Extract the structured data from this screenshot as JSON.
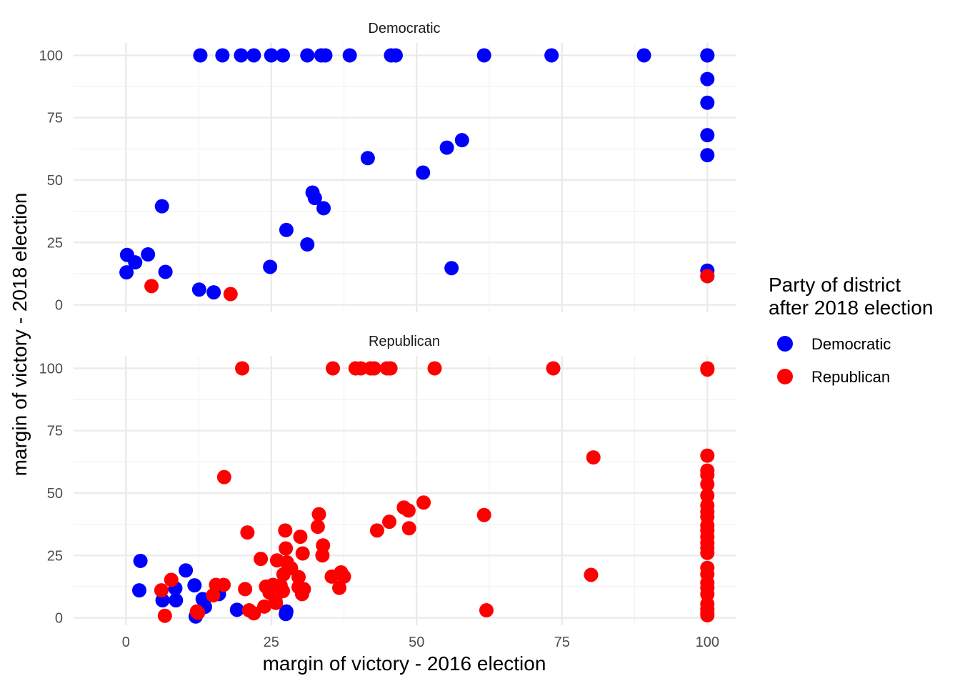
{
  "chart_data": {
    "type": "scatter",
    "xlabel": "margin of victory - 2016 election",
    "ylabel": "margin of victory - 2018 election",
    "xlim": [
      -9,
      105
    ],
    "ylim": [
      -3,
      105
    ],
    "xticks": [
      0,
      25,
      50,
      75,
      100
    ],
    "yticks": [
      0,
      25,
      50,
      75,
      100
    ],
    "grid": true,
    "legend": {
      "title_line1": "Party of district",
      "title_line2": "after 2018 election",
      "position": "right",
      "entries": [
        {
          "name": "Democratic",
          "color": "#0000ff"
        },
        {
          "name": "Republican",
          "color": "#ff0000"
        }
      ]
    },
    "panels": [
      {
        "facet": "Democratic",
        "series": [
          {
            "name": "Democratic",
            "color": "#0000ff",
            "points": [
              [
                12.8,
                100
              ],
              [
                16.6,
                100
              ],
              [
                19.8,
                100
              ],
              [
                22,
                100
              ],
              [
                25,
                100
              ],
              [
                27,
                100
              ],
              [
                31.2,
                100
              ],
              [
                33.6,
                100
              ],
              [
                34.3,
                100
              ],
              [
                38.5,
                100
              ],
              [
                45.6,
                100
              ],
              [
                46.4,
                100
              ],
              [
                61.6,
                100
              ],
              [
                73.2,
                100
              ],
              [
                89.1,
                100
              ],
              [
                100,
                100
              ],
              [
                100,
                100
              ],
              [
                100,
                90.5
              ],
              [
                100,
                81
              ],
              [
                100,
                68
              ],
              [
                100,
                60
              ],
              [
                100,
                13.7
              ],
              [
                100,
                11.5
              ],
              [
                0.1,
                13
              ],
              [
                0.2,
                20
              ],
              [
                1.6,
                17
              ],
              [
                3.8,
                20.2
              ],
              [
                6.2,
                39.5
              ],
              [
                6.8,
                13.2
              ],
              [
                12.6,
                6.1
              ],
              [
                15.1,
                5
              ],
              [
                24.8,
                15.2
              ],
              [
                27.6,
                30
              ],
              [
                31.2,
                24.2
              ],
              [
                32.1,
                45
              ],
              [
                32.5,
                42.8
              ],
              [
                34,
                38.7
              ],
              [
                41.6,
                58.8
              ],
              [
                51.1,
                53
              ],
              [
                55.2,
                63
              ],
              [
                56,
                14.7
              ],
              [
                57.8,
                66
              ]
            ]
          },
          {
            "name": "Republican",
            "color": "#ff0000",
            "points": [
              [
                4.4,
                7.5
              ],
              [
                18,
                4.3
              ],
              [
                100,
                11.5
              ]
            ]
          }
        ]
      },
      {
        "facet": "Republican",
        "series": [
          {
            "name": "Democratic",
            "color": "#0000ff",
            "points": [
              [
                2.5,
                22.8
              ],
              [
                2.3,
                11
              ],
              [
                6.3,
                7
              ],
              [
                8.5,
                11.8
              ],
              [
                8.6,
                7
              ],
              [
                10.3,
                19
              ],
              [
                11.8,
                13
              ],
              [
                12,
                0.5
              ],
              [
                13.2,
                7.5
              ],
              [
                13.6,
                4.4
              ],
              [
                16,
                9.5
              ],
              [
                19.1,
                3.2
              ],
              [
                27.6,
                2.5
              ],
              [
                27.5,
                1.5
              ]
            ]
          },
          {
            "name": "Republican",
            "color": "#ff0000",
            "points": [
              [
                20,
                100
              ],
              [
                35.6,
                100
              ],
              [
                39.5,
                100
              ],
              [
                40.4,
                100
              ],
              [
                42.1,
                100
              ],
              [
                42.7,
                100
              ],
              [
                44.9,
                100
              ],
              [
                45.5,
                100
              ],
              [
                53.1,
                100
              ],
              [
                73.5,
                100
              ],
              [
                100,
                100
              ],
              [
                100,
                99.5
              ],
              [
                80.4,
                64.3
              ],
              [
                16.9,
                56.4
              ],
              [
                80,
                17.2
              ],
              [
                61.6,
                41.2
              ],
              [
                62,
                3
              ],
              [
                51.2,
                46.2
              ],
              [
                47.8,
                44.2
              ],
              [
                48.6,
                43
              ],
              [
                45.3,
                38.5
              ],
              [
                48.7,
                35.9
              ],
              [
                43.2,
                35
              ],
              [
                33.2,
                41.5
              ],
              [
                33,
                36.5
              ],
              [
                30,
                32.5
              ],
              [
                33.9,
                29
              ],
              [
                33.8,
                25
              ],
              [
                30.4,
                25.8
              ],
              [
                27.4,
                35
              ],
              [
                27.5,
                27.8
              ],
              [
                27.7,
                22.2
              ],
              [
                26,
                23
              ],
              [
                28.4,
                19.9
              ],
              [
                27.1,
                17.4
              ],
              [
                29.7,
                16.3
              ],
              [
                29.7,
                12.3
              ],
              [
                30.6,
                11.5
              ],
              [
                30.3,
                9.5
              ],
              [
                26.6,
                13
              ],
              [
                27,
                10.7
              ],
              [
                25.3,
                13.2
              ],
              [
                24.7,
                10.1
              ],
              [
                25.7,
                7.5
              ],
              [
                24.1,
                12.5
              ],
              [
                25.8,
                6
              ],
              [
                23.8,
                4.5
              ],
              [
                23.2,
                23.6
              ],
              [
                20.9,
                34.2
              ],
              [
                20.5,
                11.5
              ],
              [
                15.5,
                13.2
              ],
              [
                16.8,
                13.2
              ],
              [
                15,
                9
              ],
              [
                21.2,
                3
              ],
              [
                22,
                1.8
              ],
              [
                12.2,
                2.5
              ],
              [
                12.4,
                2
              ],
              [
                7.8,
                15.2
              ],
              [
                6.1,
                11
              ],
              [
                6.7,
                0.8
              ],
              [
                35.4,
                16.5
              ],
              [
                37,
                18.2
              ],
              [
                37.5,
                16.5
              ],
              [
                36.7,
                12
              ],
              [
                100,
                65
              ],
              [
                100,
                59
              ],
              [
                100,
                57.2
              ],
              [
                100,
                53.5
              ],
              [
                100,
                49
              ],
              [
                100,
                45
              ],
              [
                100,
                42.5
              ],
              [
                100,
                40.5
              ],
              [
                100,
                37
              ],
              [
                100,
                35
              ],
              [
                100,
                32.5
              ],
              [
                100,
                30
              ],
              [
                100,
                28
              ],
              [
                100,
                26
              ],
              [
                100,
                20
              ],
              [
                100,
                17.5
              ],
              [
                100,
                14
              ],
              [
                100,
                12
              ],
              [
                100,
                9.5
              ],
              [
                100,
                5.5
              ],
              [
                100,
                3.5
              ],
              [
                100,
                2
              ],
              [
                100,
                1
              ]
            ]
          }
        ]
      }
    ]
  }
}
